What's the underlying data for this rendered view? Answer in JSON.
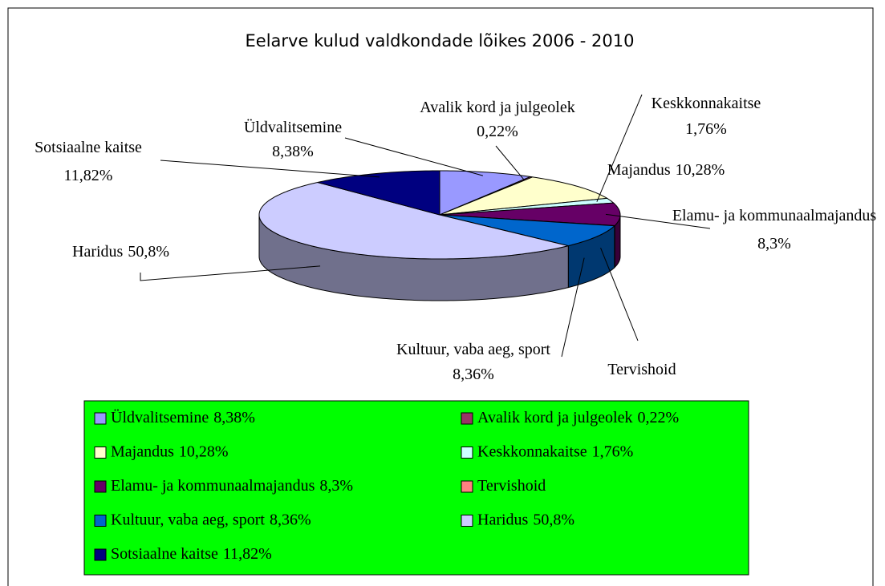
{
  "chart_data": {
    "type": "pie",
    "title": "Eelarve kulud valdkondade lõikes 2006 - 2010",
    "categories": [
      "Üldvalitsemine",
      "Avalik kord ja julgeolek",
      "Majandus",
      "Keskkonnakaitse",
      "Elamu- ja kommunaalmajandus",
      "Tervishoid",
      "Kultuur, vaba aeg, sport",
      "Haridus",
      "Sotsiaalne kaitse"
    ],
    "values": [
      8.38,
      0.22,
      10.28,
      1.76,
      8.3,
      0.08,
      8.36,
      50.8,
      11.82
    ],
    "value_labels": [
      "8,38%",
      "0,22%",
      "10,28%",
      "1,76%",
      "8,3%",
      null,
      "8,36%",
      "50,8%",
      "11,82%"
    ],
    "colors": [
      "#9999ff",
      "#993366",
      "#ffffcc",
      "#ccffff",
      "#660066",
      "#ff8080",
      "#0066cc",
      "#ccccff",
      "#000080"
    ],
    "legend_color": "#00ff00"
  }
}
